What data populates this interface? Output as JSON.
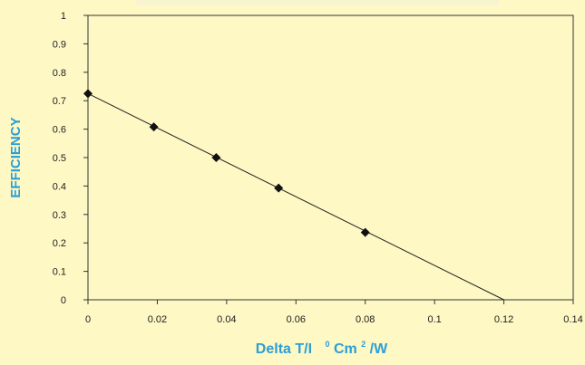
{
  "chart_data": {
    "type": "scatter",
    "title": "",
    "xlabel": "Delta T/I",
    "xlabel_unit_base": "C",
    "xlabel_unit_sup1": "0",
    "xlabel_unit_mid": "Cm",
    "xlabel_unit_sup2": "2",
    "xlabel_unit_tail": "/W",
    "ylabel": "EFFICIENCY",
    "xlim": [
      0,
      0.14
    ],
    "ylim": [
      0,
      1
    ],
    "xticks": [
      "0",
      "0.02",
      "0.04",
      "0.06",
      "0.08",
      "0.1",
      "0.12",
      "0.14"
    ],
    "yticks": [
      "0",
      "0.1",
      "0.2",
      "0.3",
      "0.4",
      "0.5",
      "0.6",
      "0.7",
      "0.8",
      "0.9",
      "1"
    ],
    "grid": false,
    "series": [
      {
        "marker": "diamond",
        "x": [
          0,
          0.019,
          0.037,
          0.055,
          0.08
        ],
        "y": [
          0.725,
          0.608,
          0.5,
          0.393,
          0.237
        ]
      }
    ],
    "fit_line": {
      "x": [
        0,
        0.12
      ],
      "y": [
        0.725,
        0
      ]
    },
    "colors": {
      "background": "#fdf8c4",
      "axis_title": "#2a9fd8",
      "title": "#f8f4d0",
      "line": "#222222",
      "marker": "#111111"
    }
  }
}
